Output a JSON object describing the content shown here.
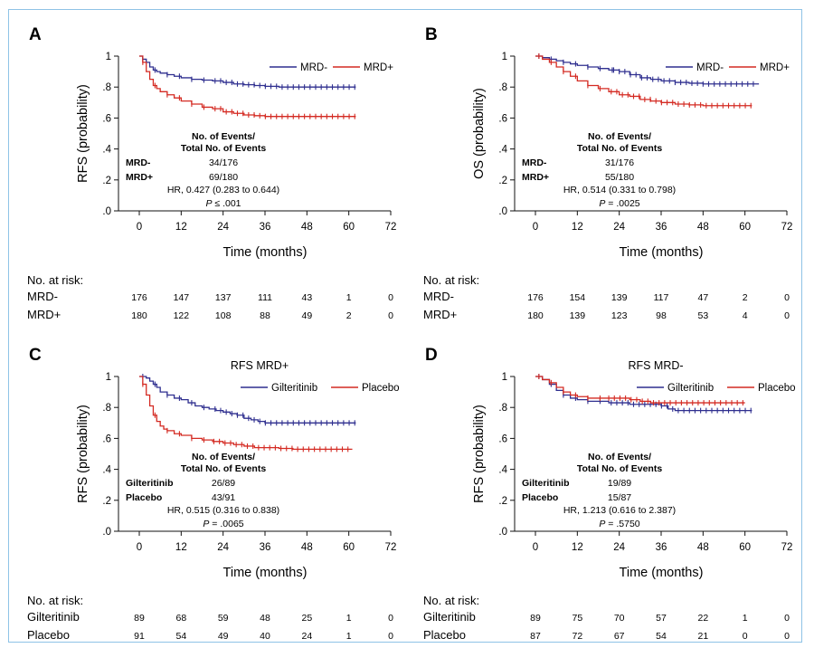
{
  "colors": {
    "series1": "#2f2f8f",
    "series2": "#d42a22",
    "frame": "#8fc3e6"
  },
  "risk_header": "No. at risk:",
  "chart_data": [
    {
      "id": "A",
      "letter": "A",
      "type": "line",
      "subtitle": "",
      "ylabel": "RFS (probability)",
      "xlabel": "Time (months)",
      "xlim": [
        0,
        72
      ],
      "ylim": [
        0,
        1
      ],
      "xticks": [
        "0",
        "12",
        "24",
        "36",
        "48",
        "60",
        "72"
      ],
      "yticks": [
        ".0",
        ".2",
        ".4",
        ".6",
        ".8",
        "1"
      ],
      "legend_position": "top-right",
      "series": [
        {
          "name": "MRD-",
          "color": "#2f2f8f",
          "x": [
            0,
            1,
            2,
            3,
            4,
            5,
            6,
            8,
            10,
            12,
            15,
            18,
            21,
            24,
            27,
            30,
            33,
            36,
            40,
            44,
            48,
            52,
            56,
            60,
            62
          ],
          "y": [
            1,
            0.98,
            0.96,
            0.93,
            0.91,
            0.9,
            0.89,
            0.88,
            0.87,
            0.86,
            0.85,
            0.845,
            0.84,
            0.83,
            0.82,
            0.815,
            0.81,
            0.805,
            0.8,
            0.8,
            0.8,
            0.8,
            0.8,
            0.8,
            0.8
          ]
        },
        {
          "name": "MRD+",
          "color": "#d42a22",
          "x": [
            0,
            1,
            2,
            3,
            4,
            5,
            6,
            8,
            10,
            12,
            15,
            18,
            21,
            24,
            27,
            30,
            33,
            36,
            40,
            44,
            48,
            52,
            56,
            60,
            62
          ],
          "y": [
            1,
            0.96,
            0.9,
            0.85,
            0.81,
            0.79,
            0.77,
            0.75,
            0.73,
            0.71,
            0.69,
            0.67,
            0.66,
            0.64,
            0.63,
            0.62,
            0.615,
            0.61,
            0.61,
            0.61,
            0.61,
            0.61,
            0.61,
            0.61,
            0.61
          ]
        }
      ],
      "stats": {
        "header1": "No. of Events/",
        "header2": "Total No. of Events",
        "rows": [
          {
            "label": "MRD-",
            "value": "34/176"
          },
          {
            "label": "MRD+",
            "value": "69/180"
          }
        ],
        "hr": "HR, 0.427 (0.283 to 0.644)",
        "p_letter": "P",
        "p_value": " ≤ .001"
      },
      "at_risk": {
        "times": [
          0,
          12,
          24,
          36,
          48,
          60,
          72
        ],
        "rows": [
          {
            "label": "MRD-",
            "values": [
              "176",
              "147",
              "137",
              "111",
              "43",
              "1",
              "0"
            ]
          },
          {
            "label": "MRD+",
            "values": [
              "180",
              "122",
              "108",
              "88",
              "49",
              "2",
              "0"
            ]
          }
        ]
      }
    },
    {
      "id": "B",
      "letter": "B",
      "type": "line",
      "subtitle": "",
      "ylabel": "OS (probability)",
      "xlabel": "Time (months)",
      "xlim": [
        0,
        72
      ],
      "ylim": [
        0,
        1
      ],
      "xticks": [
        "0",
        "12",
        "24",
        "36",
        "48",
        "60",
        "72"
      ],
      "yticks": [
        ".0",
        ".2",
        ".4",
        ".6",
        ".8",
        "1"
      ],
      "legend_position": "top-right",
      "series": [
        {
          "name": "MRD-",
          "color": "#2f2f8f",
          "x": [
            0,
            2,
            4,
            6,
            8,
            10,
            12,
            15,
            18,
            21,
            24,
            27,
            30,
            33,
            36,
            40,
            44,
            48,
            52,
            56,
            60,
            64
          ],
          "y": [
            1,
            0.99,
            0.98,
            0.97,
            0.96,
            0.95,
            0.94,
            0.93,
            0.92,
            0.91,
            0.9,
            0.88,
            0.86,
            0.85,
            0.84,
            0.83,
            0.825,
            0.82,
            0.82,
            0.82,
            0.82,
            0.82
          ]
        },
        {
          "name": "MRD+",
          "color": "#d42a22",
          "x": [
            0,
            2,
            4,
            6,
            8,
            10,
            12,
            15,
            18,
            21,
            24,
            27,
            30,
            33,
            36,
            40,
            44,
            48,
            52,
            56,
            60,
            62
          ],
          "y": [
            1,
            0.98,
            0.96,
            0.93,
            0.9,
            0.87,
            0.84,
            0.81,
            0.79,
            0.77,
            0.75,
            0.74,
            0.72,
            0.71,
            0.7,
            0.69,
            0.685,
            0.68,
            0.68,
            0.68,
            0.68,
            0.68
          ]
        }
      ],
      "stats": {
        "header1": "No. of Events/",
        "header2": "Total No. of Events",
        "rows": [
          {
            "label": "MRD-",
            "value": "31/176"
          },
          {
            "label": "MRD+",
            "value": "55/180"
          }
        ],
        "hr": "HR, 0.514 (0.331 to 0.798)",
        "p_letter": "P",
        "p_value": " = .0025"
      },
      "at_risk": {
        "times": [
          0,
          12,
          24,
          36,
          48,
          60,
          72
        ],
        "rows": [
          {
            "label": "MRD-",
            "values": [
              "176",
              "154",
              "139",
              "117",
              "47",
              "2",
              "0"
            ]
          },
          {
            "label": "MRD+",
            "values": [
              "180",
              "139",
              "123",
              "98",
              "53",
              "4",
              "0"
            ]
          }
        ]
      }
    },
    {
      "id": "C",
      "letter": "C",
      "type": "line",
      "subtitle": "RFS MRD+",
      "ylabel": "RFS (probability)",
      "xlabel": "Time (months)",
      "xlim": [
        0,
        72
      ],
      "ylim": [
        0,
        1
      ],
      "xticks": [
        "0",
        "12",
        "24",
        "36",
        "48",
        "60",
        "72"
      ],
      "yticks": [
        ".0",
        ".2",
        ".4",
        ".6",
        ".8",
        "1"
      ],
      "legend_position": "top-right",
      "series": [
        {
          "name": "Gilteritinib",
          "color": "#2f2f8f",
          "x": [
            0,
            2,
            3,
            4,
            5,
            6,
            8,
            10,
            12,
            14,
            16,
            18,
            20,
            22,
            24,
            26,
            28,
            30,
            32,
            34,
            36,
            40,
            44,
            48,
            52,
            56,
            60,
            62
          ],
          "y": [
            1,
            0.99,
            0.97,
            0.95,
            0.93,
            0.9,
            0.88,
            0.86,
            0.85,
            0.83,
            0.81,
            0.8,
            0.79,
            0.78,
            0.77,
            0.76,
            0.75,
            0.73,
            0.72,
            0.71,
            0.7,
            0.7,
            0.7,
            0.7,
            0.7,
            0.7,
            0.7,
            0.7
          ]
        },
        {
          "name": "Placebo",
          "color": "#d42a22",
          "x": [
            0,
            1,
            2,
            3,
            4,
            5,
            6,
            7,
            8,
            10,
            12,
            15,
            18,
            21,
            24,
            27,
            30,
            33,
            36,
            40,
            44,
            48,
            52,
            56,
            60,
            61
          ],
          "y": [
            1,
            0.95,
            0.88,
            0.81,
            0.75,
            0.71,
            0.68,
            0.66,
            0.65,
            0.63,
            0.62,
            0.6,
            0.59,
            0.58,
            0.57,
            0.56,
            0.55,
            0.54,
            0.54,
            0.535,
            0.53,
            0.53,
            0.53,
            0.53,
            0.53,
            0.53
          ]
        }
      ],
      "stats": {
        "header1": "No. of Events/",
        "header2": "Total No. of Events",
        "rows": [
          {
            "label": "Gilteritinib",
            "value": "26/89"
          },
          {
            "label": "Placebo",
            "value": "43/91"
          }
        ],
        "hr": "HR, 0.515 (0.316 to 0.838)",
        "p_letter": "P",
        "p_value": " = .0065"
      },
      "at_risk": {
        "times": [
          0,
          12,
          24,
          36,
          48,
          60,
          72
        ],
        "rows": [
          {
            "label": "Gilteritinib",
            "values": [
              "89",
              "68",
              "59",
              "48",
              "25",
              "1",
              "0"
            ]
          },
          {
            "label": "Placebo",
            "values": [
              "91",
              "54",
              "49",
              "40",
              "24",
              "1",
              "0"
            ]
          }
        ]
      }
    },
    {
      "id": "D",
      "letter": "D",
      "type": "line",
      "subtitle": "RFS MRD-",
      "ylabel": "RFS (probability)",
      "xlabel": "Time (months)",
      "xlim": [
        0,
        72
      ],
      "ylim": [
        0,
        1
      ],
      "xticks": [
        "0",
        "12",
        "24",
        "36",
        "48",
        "60",
        "72"
      ],
      "yticks": [
        ".0",
        ".2",
        ".4",
        ".6",
        ".8",
        "1"
      ],
      "legend_position": "top-right",
      "series": [
        {
          "name": "Gilteritinib",
          "color": "#2f2f8f",
          "x": [
            0,
            2,
            4,
            6,
            8,
            10,
            12,
            15,
            18,
            21,
            24,
            27,
            30,
            33,
            36,
            38,
            40,
            44,
            48,
            52,
            56,
            60,
            62
          ],
          "y": [
            1,
            0.98,
            0.95,
            0.91,
            0.88,
            0.86,
            0.85,
            0.84,
            0.84,
            0.83,
            0.83,
            0.82,
            0.82,
            0.82,
            0.81,
            0.79,
            0.78,
            0.78,
            0.78,
            0.78,
            0.78,
            0.78,
            0.78
          ]
        },
        {
          "name": "Placebo",
          "color": "#d42a22",
          "x": [
            0,
            2,
            4,
            6,
            8,
            10,
            12,
            15,
            18,
            21,
            24,
            27,
            30,
            33,
            36,
            40,
            44,
            48,
            52,
            56,
            60
          ],
          "y": [
            1,
            0.98,
            0.96,
            0.93,
            0.9,
            0.88,
            0.87,
            0.86,
            0.86,
            0.86,
            0.86,
            0.85,
            0.84,
            0.83,
            0.83,
            0.83,
            0.83,
            0.83,
            0.83,
            0.83,
            0.83
          ]
        }
      ],
      "stats": {
        "header1": "No. of Events/",
        "header2": "Total No. of Events",
        "rows": [
          {
            "label": "Gilteritinib",
            "value": "19/89"
          },
          {
            "label": "Placebo",
            "value": "15/87"
          }
        ],
        "hr": "HR, 1.213 (0.616 to 2.387)",
        "p_letter": "P",
        "p_value": " = .5750"
      },
      "at_risk": {
        "times": [
          0,
          12,
          24,
          36,
          48,
          60,
          72
        ],
        "rows": [
          {
            "label": "Gilteritinib",
            "values": [
              "89",
              "75",
              "70",
              "57",
              "22",
              "1",
              "0"
            ]
          },
          {
            "label": "Placebo",
            "values": [
              "87",
              "72",
              "67",
              "54",
              "21",
              "0",
              "0"
            ]
          }
        ]
      }
    }
  ]
}
